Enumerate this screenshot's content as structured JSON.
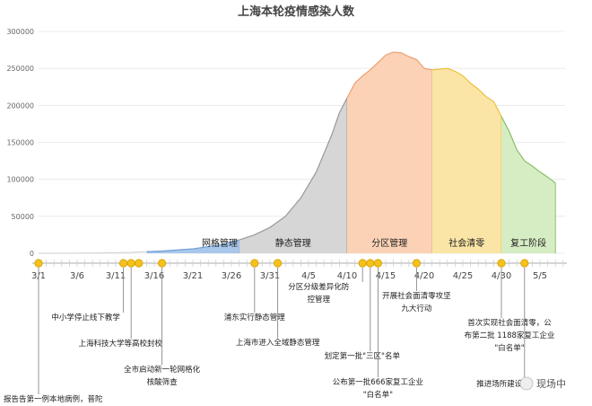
{
  "chart_data": {
    "type": "area",
    "title": "上海本轮疫情感染人数",
    "ylim": [
      0,
      300000
    ],
    "yticks": [
      "0",
      "50000",
      "100000",
      "150000",
      "200000",
      "250000",
      "300000"
    ],
    "xticks": [
      "3/1",
      "3/6",
      "3/11",
      "3/16",
      "3/21",
      "3/26",
      "3/31",
      "4/5",
      "4/10",
      "4/15",
      "4/20",
      "4/25",
      "4/30",
      "5/5"
    ],
    "grid": true,
    "points": [
      {
        "day": 0,
        "v": 0
      },
      {
        "day": 4,
        "v": 100
      },
      {
        "day": 8,
        "v": 500
      },
      {
        "day": 12,
        "v": 1200
      },
      {
        "day": 16,
        "v": 3000
      },
      {
        "day": 20,
        "v": 6000
      },
      {
        "day": 24,
        "v": 12000
      },
      {
        "day": 26,
        "v": 18000
      },
      {
        "day": 28,
        "v": 25000
      },
      {
        "day": 30,
        "v": 35000
      },
      {
        "day": 32,
        "v": 50000
      },
      {
        "day": 34,
        "v": 75000
      },
      {
        "day": 36,
        "v": 110000
      },
      {
        "day": 38,
        "v": 160000
      },
      {
        "day": 39,
        "v": 190000
      },
      {
        "day": 40,
        "v": 210000
      },
      {
        "day": 41,
        "v": 230000
      },
      {
        "day": 42,
        "v": 240000
      },
      {
        "day": 43,
        "v": 248000
      },
      {
        "day": 44,
        "v": 258000
      },
      {
        "day": 45,
        "v": 268000
      },
      {
        "day": 46,
        "v": 272000
      },
      {
        "day": 47,
        "v": 271000
      },
      {
        "day": 48,
        "v": 266000
      },
      {
        "day": 49,
        "v": 262000
      },
      {
        "day": 50,
        "v": 250000
      },
      {
        "day": 51,
        "v": 248000
      },
      {
        "day": 52,
        "v": 249000
      },
      {
        "day": 53,
        "v": 250000
      },
      {
        "day": 54,
        "v": 246000
      },
      {
        "day": 55,
        "v": 240000
      },
      {
        "day": 56,
        "v": 230000
      },
      {
        "day": 57,
        "v": 222000
      },
      {
        "day": 58,
        "v": 212000
      },
      {
        "day": 59,
        "v": 205000
      },
      {
        "day": 60,
        "v": 185000
      },
      {
        "day": 61,
        "v": 165000
      },
      {
        "day": 62,
        "v": 140000
      },
      {
        "day": 63,
        "v": 125000
      },
      {
        "day": 64,
        "v": 118000
      },
      {
        "day": 65,
        "v": 110000
      },
      {
        "day": 66,
        "v": 103000
      },
      {
        "day": 67,
        "v": 95000
      }
    ],
    "phases": [
      {
        "label": "网格管理",
        "start": 14,
        "end": 26,
        "color": "#a9c7ea",
        "stroke": "#6f9fd8"
      },
      {
        "label": "静态管理",
        "start": 26,
        "end": 40,
        "color": "#d6d6d6",
        "stroke": "#9a9a9a"
      },
      {
        "label": "分区管理",
        "start": 40,
        "end": 51,
        "color": "#fbd2b6",
        "stroke": "#f0a070"
      },
      {
        "label": "社会清零",
        "start": 51,
        "end": 60,
        "color": "#fbe5a6",
        "stroke": "#f0c040"
      },
      {
        "label": "复工阶段",
        "start": 60,
        "end": 67,
        "color": "#d6edc4",
        "stroke": "#8ac068"
      }
    ],
    "timeline_marks": [
      0,
      11,
      12,
      13,
      16,
      28,
      31,
      42,
      43,
      44,
      49,
      60,
      63
    ],
    "events": [
      {
        "day": 0,
        "text": [
          "报告告第一例本地病例，普陀"
        ]
      },
      {
        "day": 11,
        "text": [
          "中小学停止线下教学"
        ]
      },
      {
        "day": 12,
        "text": [
          "上海科技大学等高校封校"
        ]
      },
      {
        "day": 16,
        "text": [
          "全市启动新一轮网格化",
          "核酸筛查"
        ]
      },
      {
        "day": 28,
        "text": [
          "浦东实行静态管理"
        ]
      },
      {
        "day": 31,
        "text": [
          "上海市进入全域静态管理"
        ]
      },
      {
        "day": 42,
        "text": [
          "分区分级差异化防",
          "控管理"
        ]
      },
      {
        "day": 43,
        "text": [
          "划定第一批\"三区\"名单"
        ]
      },
      {
        "day": 44,
        "text": [
          "公布第一批666家复工企业",
          "\"白名单\""
        ]
      },
      {
        "day": 49,
        "text": [
          "开展社会面清零攻坚",
          "九大行动"
        ]
      },
      {
        "day": 60,
        "text": [
          "首次实现社会面清零，公",
          "布第二批 1188家复工企业",
          "\"白名单\""
        ]
      },
      {
        "day": 63,
        "text": [
          "推进场所建设"
        ]
      }
    ]
  },
  "watermark": "现场中"
}
